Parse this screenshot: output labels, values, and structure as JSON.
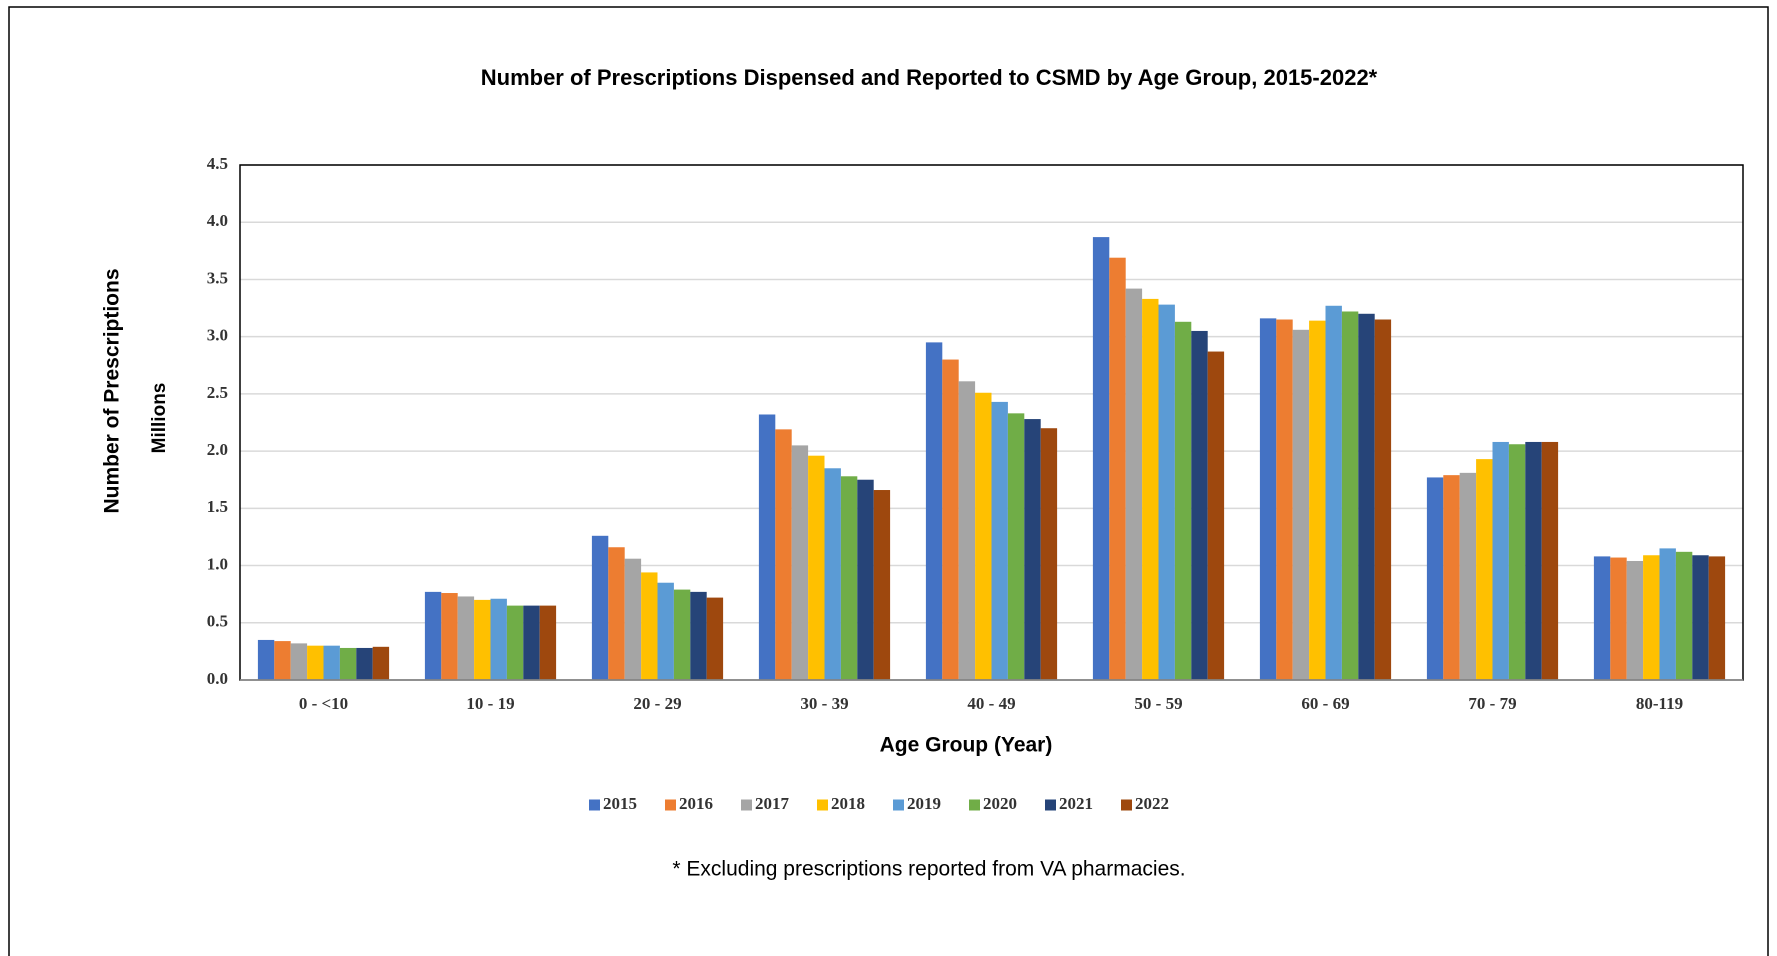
{
  "chart_data": {
    "type": "bar",
    "title": "Number of Prescriptions Dispensed and Reported to CSMD by Age Group, 2015-2022*",
    "x_label": "Age Group (Year)",
    "y_label": "Number of Prescriptions",
    "y_units": "Millions",
    "footnote": "* Excluding prescriptions reported from VA pharmacies.",
    "categories": [
      "0 - <10",
      "10 - 19",
      "20 - 29",
      "30 - 39",
      "40 - 49",
      "50 - 59",
      "60 - 69",
      "70 - 79",
      "80-119"
    ],
    "series": [
      {
        "name": "2015",
        "color": "#4472c4",
        "values": [
          0.35,
          0.77,
          1.26,
          2.32,
          2.95,
          3.87,
          3.16,
          1.77,
          1.08
        ]
      },
      {
        "name": "2016",
        "color": "#ed7d31",
        "values": [
          0.34,
          0.76,
          1.16,
          2.19,
          2.8,
          3.69,
          3.15,
          1.79,
          1.07
        ]
      },
      {
        "name": "2017",
        "color": "#a5a5a5",
        "values": [
          0.32,
          0.73,
          1.06,
          2.05,
          2.61,
          3.42,
          3.06,
          1.81,
          1.04
        ]
      },
      {
        "name": "2018",
        "color": "#ffc000",
        "values": [
          0.3,
          0.7,
          0.94,
          1.96,
          2.51,
          3.33,
          3.14,
          1.93,
          1.09
        ]
      },
      {
        "name": "2019",
        "color": "#5b9bd5",
        "values": [
          0.3,
          0.71,
          0.85,
          1.85,
          2.43,
          3.28,
          3.27,
          2.08,
          1.15
        ]
      },
      {
        "name": "2020",
        "color": "#70ad47",
        "values": [
          0.28,
          0.65,
          0.79,
          1.78,
          2.33,
          3.13,
          3.22,
          2.06,
          1.12
        ]
      },
      {
        "name": "2021",
        "color": "#264478",
        "values": [
          0.28,
          0.65,
          0.77,
          1.75,
          2.28,
          3.05,
          3.2,
          2.08,
          1.09
        ]
      },
      {
        "name": "2022",
        "color": "#9e480e",
        "values": [
          0.29,
          0.65,
          0.72,
          1.66,
          2.2,
          2.87,
          3.15,
          2.08,
          1.08
        ]
      }
    ],
    "ylim": [
      0,
      4.5
    ],
    "yticks": [
      {
        "value": 0,
        "label": "0.0"
      },
      0.5,
      {
        "value": 1,
        "label": "1.0"
      },
      1.5,
      {
        "value": 2,
        "label": "2.0"
      },
      2.5,
      {
        "value": 3,
        "label": "3.0"
      },
      3.5,
      {
        "value": 4,
        "label": "4.0"
      },
      4.5
    ],
    "grid": true,
    "legend": "bottom"
  }
}
